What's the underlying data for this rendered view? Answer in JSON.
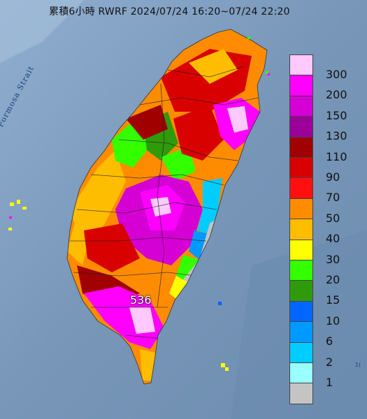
{
  "title": "累積6小時 RWRF 2024/07/24 16:20~07/24 22:20",
  "strait_label": "Formosa Strait",
  "peak": {
    "value": "536",
    "marker": "triangle-station-icon"
  },
  "edge_label": "1(",
  "legend": [
    {
      "label": "300",
      "color": "#ffc8ff"
    },
    {
      "label": "200",
      "color": "#ff00ff"
    },
    {
      "label": "150",
      "color": "#d400d4"
    },
    {
      "label": "130",
      "color": "#9b009b"
    },
    {
      "label": "110",
      "color": "#a00000"
    },
    {
      "label": "90",
      "color": "#d90000"
    },
    {
      "label": "70",
      "color": "#ff1010"
    },
    {
      "label": "50",
      "color": "#ff8c00"
    },
    {
      "label": "40",
      "color": "#ffbd00"
    },
    {
      "label": "30",
      "color": "#ffff00"
    },
    {
      "label": "20",
      "color": "#33ff00"
    },
    {
      "label": "15",
      "color": "#2f9b0a"
    },
    {
      "label": "10",
      "color": "#0066ff"
    },
    {
      "label": "6",
      "color": "#0099ff"
    },
    {
      "label": "2",
      "color": "#00ccff"
    },
    {
      "label": "1",
      "color": "#99ffff"
    },
    {
      "label": "",
      "color": "#c4c4c4"
    }
  ]
}
